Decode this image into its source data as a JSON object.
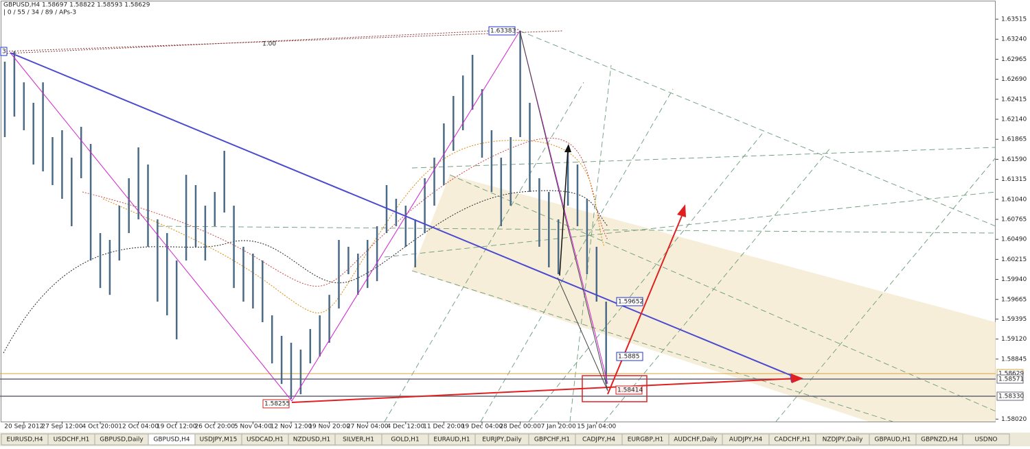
{
  "header": {
    "line1": "GBPUSD,H4  1.58697 1.58822 1.58593 1.58629",
    "line2": "| 0 / 55 / 34 / 89 / APs-3"
  },
  "chart_data": {
    "type": "hilo",
    "color": "#4a6a86",
    "categories": [
      null,
      null,
      "20 Sep 2012",
      null,
      null,
      null,
      "27 Sep 12:00",
      null,
      null,
      null,
      "4 Oct 20:00",
      null,
      null,
      null,
      "12 Oct 04:00",
      null,
      null,
      null,
      "19 Oct 12:00",
      null,
      null,
      null,
      "26 Oct 20:00",
      null,
      null,
      null,
      "5 Nov 04:00",
      null,
      null,
      null,
      "12 Nov 12:00",
      null,
      null,
      null,
      "19 Nov 20:00",
      null,
      null,
      null,
      "27 Nov 04:00",
      null,
      null,
      null,
      "4 Dec 12:00",
      null,
      null,
      null,
      "11 Dec 20:00",
      null,
      null,
      null,
      "19 Dec 04:00",
      null,
      null,
      null,
      "28 Dec 00:00",
      null,
      null,
      null,
      "7 Jan 20:00",
      null,
      null,
      null,
      "15 Jan 04:00",
      null
    ],
    "high": [
      1.62931,
      1.63072,
      1.62648,
      1.62366,
      1.62648,
      1.61895,
      1.61989,
      1.61612,
      1.62036,
      1.61801,
      1.60576,
      1.60482,
      1.60953,
      1.6133,
      1.61754,
      1.61518,
      1.60765,
      1.60576,
      1.60199,
      1.61377,
      1.61236,
      1.60953,
      1.61141,
      1.61707,
      1.60953,
      1.60388,
      1.60294,
      1.60199,
      1.59446,
      1.59163,
      1.59069,
      1.58975,
      1.59258,
      1.59446,
      1.59728,
      1.60482,
      1.60388,
      1.60294,
      1.60482,
      1.6067,
      1.61236,
      1.61047,
      1.60953,
      1.60765,
      1.6133,
      1.61612,
      1.62083,
      1.6246,
      1.62742,
      1.63025,
      1.62554,
      1.61989,
      1.61612,
      1.61895,
      1.63355,
      1.62366,
      1.6133,
      1.61141,
      1.60765,
      1.61754,
      1.61518,
      1.61047,
      1.60388,
      1.59634
    ],
    "low": [
      1.61895,
      1.62177,
      1.61989,
      1.61518,
      1.61424,
      1.61236,
      1.61047,
      1.6067,
      1.6133,
      1.60199,
      1.59822,
      1.59728,
      1.60199,
      1.60576,
      1.60765,
      1.60388,
      1.59634,
      1.59446,
      1.59116,
      1.60199,
      1.60388,
      1.60199,
      1.6067,
      1.60859,
      1.59822,
      1.59634,
      1.5954,
      1.59352,
      1.58786,
      1.58503,
      1.58296,
      1.58362,
      1.58786,
      1.5888,
      1.59069,
      1.5954,
      1.60011,
      1.59728,
      1.59822,
      1.59916,
      1.60576,
      1.6067,
      1.60388,
      1.60105,
      1.60576,
      1.60953,
      1.61236,
      1.61707,
      1.61989,
      1.62271,
      1.61612,
      1.61141,
      1.6067,
      1.60953,
      1.61895,
      1.61141,
      1.60388,
      1.60105,
      1.60011,
      1.60953,
      1.6067,
      1.60011,
      1.59634,
      1.58503
    ],
    "ylim": [
      1.57986,
      1.63779
    ],
    "yticks": [
      1.63515,
      {
        "value": 1.6324,
        "label": "1.63240"
      },
      1.62965,
      {
        "value": 1.6269,
        "label": "1.62690"
      },
      1.62415,
      {
        "value": 1.6214,
        "label": "1.62140"
      },
      1.61865,
      {
        "value": 1.6159,
        "label": "1.61590"
      },
      1.61315,
      {
        "value": 1.6104,
        "label": "1.61040"
      },
      1.60765,
      {
        "value": 1.6049,
        "label": "1.60490"
      },
      1.60215,
      {
        "value": 1.5994,
        "label": "1.59940"
      },
      1.59665,
      1.59395,
      {
        "value": 1.5912,
        "label": "1.59120"
      },
      1.58845,
      {
        "value": 1.5802,
        "label": "1.58020"
      }
    ],
    "annotations": [
      "1.63383",
      "1.59652",
      "1.5885",
      "1.58255",
      "1.58414",
      "1.58629",
      "1.58571",
      "1.58330",
      "3",
      "1.00"
    ]
  },
  "tabs": [
    "EURUSD,H4",
    "USDCHF,H1",
    "GBPUSD,Daily",
    "GBPUSD,H4",
    "USDJPY,M15",
    "USDCAD,H1",
    "NZDUSD,H1",
    "SILVER,H1",
    "GOLD,H1",
    "EURAUD,H1",
    "EURJPY,Daily",
    "GBPCHF,H1",
    "CADJPY,H4",
    "EURGBP,H1",
    "AUDCHF,Daily",
    "AUDJPY,H4",
    "CADCHF,H1",
    "NZDJPY,Daily",
    "GBPAUD,H1",
    "GBPNZD,H4",
    "USDNO"
  ]
}
